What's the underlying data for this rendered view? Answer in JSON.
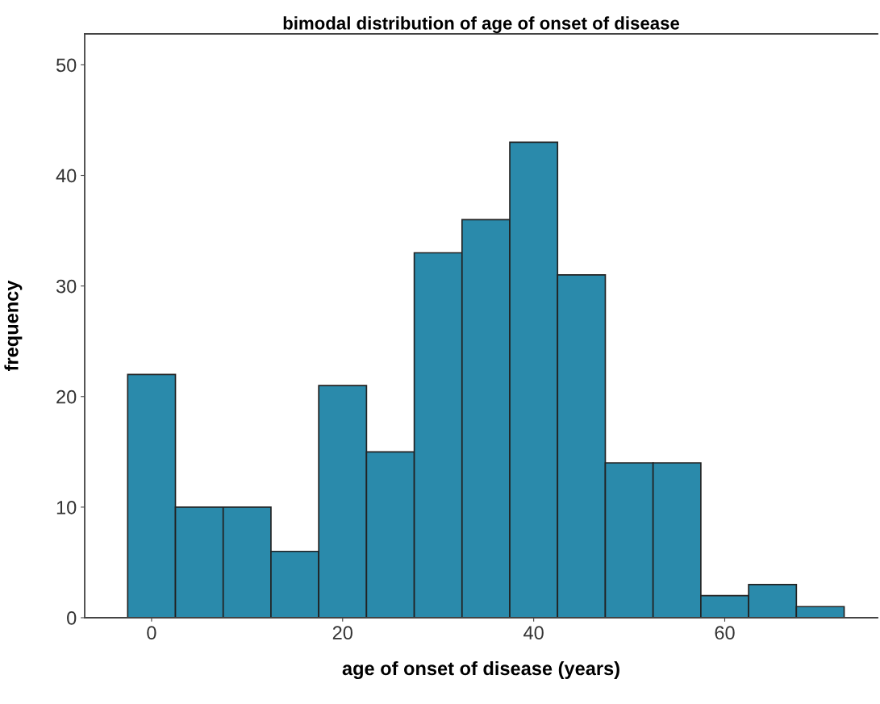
{
  "chart_data": {
    "type": "histogram",
    "title": "bimodal distribution of age of onset of disease",
    "xlabel": "age of onset of disease (years)",
    "ylabel": "frequency",
    "bins": [
      -2.5,
      2.5,
      7.5,
      12.5,
      17.5,
      22.5,
      27.5,
      32.5,
      37.5,
      42.5,
      47.5,
      52.5,
      57.5,
      62.5,
      67.5,
      72.5
    ],
    "values": [
      22,
      10,
      10,
      6,
      21,
      15,
      33,
      36,
      43,
      31,
      14,
      14,
      2,
      3,
      1
    ],
    "color": "#2a8aab",
    "xlim": [
      -7,
      76
    ],
    "xticks": [
      0,
      20,
      40,
      60
    ],
    "ylim": [
      0,
      52.8
    ],
    "yticks": [
      0,
      10,
      20,
      30,
      40,
      50
    ],
    "grid": false
  }
}
